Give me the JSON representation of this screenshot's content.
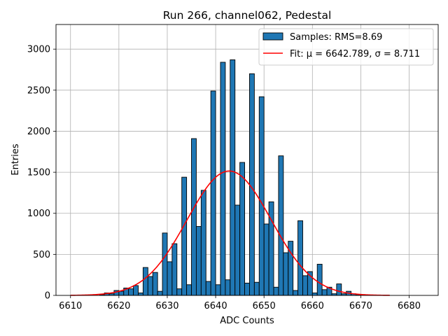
{
  "chart_data": {
    "type": "bar",
    "title": "Run 266, channel062, Pedestal",
    "xlabel": "ADC Counts",
    "ylabel": "Entries",
    "xlim": [
      6607,
      6686
    ],
    "ylim": [
      0,
      3300
    ],
    "x_ticks": [
      6610,
      6620,
      6630,
      6640,
      6650,
      6660,
      6670,
      6680
    ],
    "y_ticks": [
      0,
      500,
      1000,
      1500,
      2000,
      2500,
      3000
    ],
    "grid": true,
    "legend_position": "top-right",
    "histogram": {
      "name": "Samples: RMS=8.69",
      "color": "#1f77b4",
      "edgecolor": "#000000",
      "bin_width": 1,
      "bin_starts": [
        6616,
        6617,
        6618,
        6619,
        6620,
        6621,
        6622,
        6623,
        6624,
        6625,
        6626,
        6627,
        6628,
        6629,
        6630,
        6631,
        6632,
        6633,
        6634,
        6635,
        6636,
        6637,
        6638,
        6639,
        6640,
        6641,
        6642,
        6643,
        6644,
        6645,
        6646,
        6647,
        6648,
        6649,
        6650,
        6651,
        6652,
        6653,
        6654,
        6655,
        6656,
        6657,
        6658,
        6659,
        6660,
        6661,
        6662,
        6663,
        6664,
        6665,
        6666,
        6667,
        6668,
        6669
      ],
      "counts": [
        10,
        30,
        20,
        60,
        50,
        90,
        80,
        120,
        30,
        340,
        230,
        280,
        50,
        760,
        410,
        630,
        80,
        1440,
        130,
        1910,
        840,
        1280,
        170,
        2490,
        130,
        2840,
        190,
        2870,
        1100,
        1620,
        150,
        2700,
        160,
        2420,
        870,
        1140,
        100,
        1700,
        520,
        660,
        60,
        910,
        240,
        290,
        30,
        380,
        70,
        100,
        20,
        140,
        20,
        50,
        20,
        10
      ]
    },
    "fit": {
      "name": "Fit: μ = 6642.789, σ = 8.711",
      "color": "#ff0000",
      "mu": 6642.789,
      "sigma": 8.711,
      "amplitude": 1515,
      "x_range": [
        6610,
        6676
      ]
    }
  }
}
